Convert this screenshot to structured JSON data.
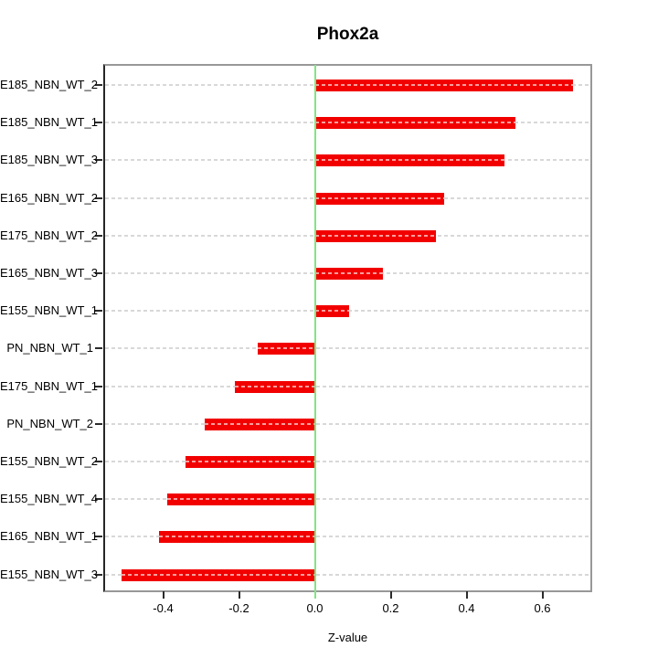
{
  "chart_data": {
    "type": "bar",
    "orientation": "horizontal",
    "title": "Phox2a",
    "xlabel": "Z-value",
    "ylabel": "",
    "categories": [
      "E185_NBN_WT_2",
      "E185_NBN_WT_1",
      "E185_NBN_WT_3",
      "E165_NBN_WT_2",
      "E175_NBN_WT_2",
      "E165_NBN_WT_3",
      "E155_NBN_WT_1",
      "PN_NBN_WT_1",
      "E175_NBN_WT_1",
      "PN_NBN_WT_2",
      "E155_NBN_WT_2",
      "E155_NBN_WT_4",
      "E165_NBN_WT_1",
      "E155_NBN_WT_3"
    ],
    "values": [
      0.68,
      0.53,
      0.5,
      0.34,
      0.32,
      0.18,
      0.09,
      -0.15,
      -0.21,
      -0.29,
      -0.34,
      -0.39,
      -0.41,
      -0.51
    ],
    "xlim": [
      -0.56,
      0.73
    ],
    "xticks": [
      {
        "label": "-0.4",
        "value": -0.4
      },
      {
        "label": "-0.2",
        "value": -0.2
      },
      {
        "label": "0.0",
        "value": 0.0
      },
      {
        "label": "0.2",
        "value": 0.2
      },
      {
        "label": "0.4",
        "value": 0.4
      },
      {
        "label": "0.6",
        "value": 0.6
      }
    ],
    "grid": "horizontal dashed line per category, full plot width",
    "legend": "none",
    "zero_reference_line": true,
    "colors": {
      "bar": "#f20000",
      "bar_dash": "#ff9c9c",
      "zero_line": "#82e582",
      "grid": "#d8d8d8",
      "box_border": "#989898",
      "axis": "#2b2b2b",
      "text": "#000000",
      "background": "#ffffff"
    }
  }
}
